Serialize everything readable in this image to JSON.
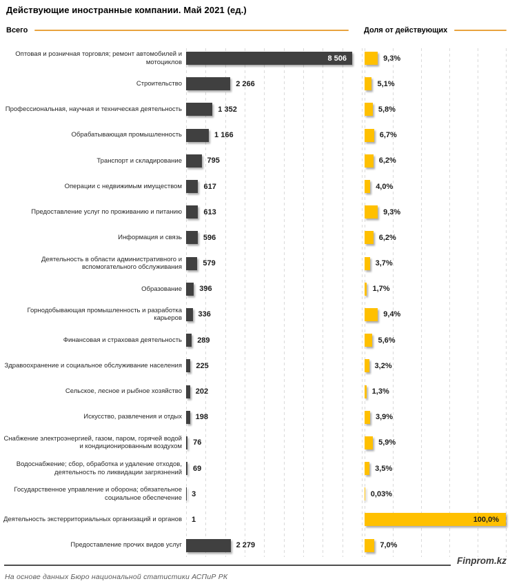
{
  "footer": {
    "brand": "Finprom.kz",
    "source": "На основе данных Бюро национальной статистики АСПиР РК"
  },
  "colors": {
    "bar_total": "#404040",
    "bar_share": "#FFC000",
    "header_line": "#E8A33D",
    "gridline": "#D9D9D9",
    "footer_line": "#4D4D4D"
  },
  "chart_data": {
    "type": "bar",
    "orientation": "horizontal",
    "title": "Действующие иностранные компании. Май 2021 (ед.)",
    "grid": "dashed-vertical",
    "legend": "none",
    "categories": [
      "Оптовая и розничная торговля; ремонт автомобилей и мотоциклов",
      "Строительство",
      "Профессиональная, научная и техническая деятельность",
      "Обрабатывающая промышленность",
      "Транспорт и складирование",
      "Операции с недвижимым имуществом",
      "Предоставление услуг по проживанию и питанию",
      "Информация и связь",
      "Деятельность в области административного и вспомогательного обслуживания",
      "Образование",
      "Горнодобывающая промышленность и разработка карьеров",
      "Финансовая и страховая деятельность",
      "Здравоохранение и социальное обслуживание населения",
      "Сельское, лесное и рыбное хозяйство",
      "Искусство, развлечения и отдых",
      "Снабжение электроэнергией, газом, паром, горячей водой и кондиционированным воздухом",
      "Водоснабжение; сбор, обработка и удаление отходов, деятельность по ликвидации загрязнений",
      "Государственное управление и оборона; обязательное социальное обеспечение",
      "Деятельность экстерриториальных организаций и органов",
      "Предоставление прочих видов услуг"
    ],
    "series": [
      {
        "name": "Всего",
        "color": "#404040",
        "axis": {
          "min": 0,
          "max": 9000,
          "gridline_step": 1000
        },
        "values": [
          8506,
          2266,
          1352,
          1166,
          795,
          617,
          613,
          596,
          579,
          396,
          336,
          289,
          225,
          202,
          198,
          76,
          69,
          3,
          1,
          2279
        ],
        "labels": [
          "8 506",
          "2 266",
          "1 352",
          "1 166",
          "795",
          "617",
          "613",
          "596",
          "579",
          "396",
          "336",
          "289",
          "225",
          "202",
          "198",
          "76",
          "69",
          "3",
          "1",
          "2 279"
        ]
      },
      {
        "name": "Доля от действующих",
        "color": "#FFC000",
        "axis": {
          "min": 0,
          "max": 100,
          "gridline_step": 20
        },
        "values": [
          9.3,
          5.1,
          5.8,
          6.7,
          6.2,
          4.0,
          9.3,
          6.2,
          3.7,
          1.7,
          9.4,
          5.6,
          3.2,
          1.3,
          3.9,
          5.9,
          3.5,
          0.03,
          100.0,
          7.0
        ],
        "labels": [
          "9,3%",
          "5,1%",
          "5,8%",
          "6,7%",
          "6,2%",
          "4,0%",
          "9,3%",
          "6,2%",
          "3,7%",
          "1,7%",
          "9,4%",
          "5,6%",
          "3,2%",
          "1,3%",
          "3,9%",
          "5,9%",
          "3,5%",
          "0,03%",
          "100,0%",
          "7,0%"
        ]
      }
    ]
  }
}
